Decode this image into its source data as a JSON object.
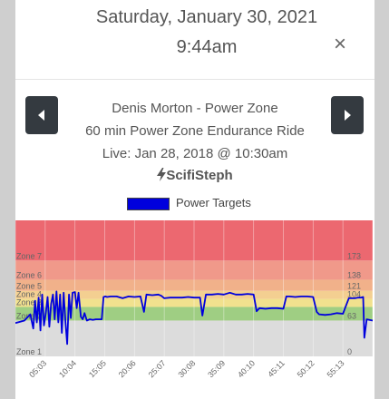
{
  "header": {
    "date": "Saturday, January 30, 2021",
    "time": "9:44am",
    "close_symbol": "×"
  },
  "ride": {
    "instructor": "Denis Morton - Power Zone",
    "title": "60 min Power Zone Endurance Ride",
    "live": "Live: Jan 28, 2018 @ 10:30am",
    "handle": "ScifiSteph"
  },
  "legend": {
    "label": "Power Targets",
    "color": "#0000dd"
  },
  "chart_data": {
    "type": "line",
    "title": "",
    "xlabel": "",
    "ylabel": "",
    "x_ticks": [
      "05:03",
      "10:04",
      "15:05",
      "20:06",
      "25:07",
      "30:08",
      "35:09",
      "40:10",
      "45:11",
      "50:12",
      "55:13"
    ],
    "zones": [
      {
        "label": "Zone 1",
        "color": "#dcdcdc"
      },
      {
        "label": "Zone 2",
        "color": "#9fce83"
      },
      {
        "label": "Zone 3",
        "color": "#f1e18e"
      },
      {
        "label": "Zone 4",
        "color": "#f3cf91"
      },
      {
        "label": "Zone 5",
        "color": "#f1b18a"
      },
      {
        "label": "Zone 6",
        "color": "#f0998a"
      },
      {
        "label": "Zone 7",
        "color": "#ec6870"
      }
    ],
    "right_ticks": [
      "0",
      "63",
      "104",
      "121",
      "138",
      "173"
    ],
    "series": [
      {
        "name": "Power Targets",
        "color": "#0000dd",
        "x": [
          0,
          1.5,
          2.5,
          3.0,
          3.3,
          3.6,
          3.9,
          4.2,
          4.5,
          4.8,
          5.1,
          5.4,
          5.7,
          6.0,
          6.3,
          6.6,
          6.9,
          7.2,
          7.5,
          7.8,
          8.1,
          8.4,
          8.7,
          9.0,
          9.3,
          9.6,
          10.0,
          10.3,
          10.6,
          11.0,
          11.3,
          11.6,
          12.0,
          12.5,
          13.0,
          13.5,
          14.0,
          14.5,
          14.8,
          15.1,
          15.4,
          16.0,
          17.0,
          18.0,
          19.0,
          20.0,
          21.0,
          21.6,
          22.0,
          23.0,
          24.0,
          24.5,
          25.0,
          26.0,
          27.0,
          28.0,
          29.0,
          30.0,
          31.0,
          31.4,
          32.0,
          33.0,
          34.0,
          35.0,
          36.0,
          37.0,
          38.0,
          39.0,
          40.0,
          40.5,
          41.0,
          42.0,
          43.0,
          44.0,
          45.0,
          45.5,
          46.0,
          47.0,
          48.0,
          49.0,
          50.0,
          50.6,
          51.0,
          52.0,
          53.0,
          54.0,
          55.0,
          56.0,
          57.0,
          57.5,
          58.0,
          58.4,
          58.6,
          59.0,
          60.0
        ],
        "values": [
          54,
          58,
          68,
          45,
          90,
          55,
          95,
          42,
          100,
          50,
          70,
          96,
          48,
          85,
          100,
          60,
          105,
          55,
          100,
          38,
          103,
          55,
          20,
          100,
          62,
          103,
          104,
          78,
          103,
          64,
          60,
          70,
          58,
          60,
          59,
          60,
          60,
          60,
          96,
          97,
          96,
          97,
          97,
          94,
          97,
          96,
          97,
          72,
          100,
          99,
          100,
          98,
          94,
          95,
          95,
          95,
          96,
          95,
          95,
          66,
          100,
          100,
          101,
          100,
          103,
          100,
          100,
          101,
          100,
          73,
          78,
          77,
          78,
          78,
          77,
          97,
          97,
          96,
          97,
          97,
          96,
          72,
          68,
          67,
          68,
          70,
          69,
          94,
          94,
          95,
          95,
          96,
          30,
          60,
          58
        ]
      }
    ]
  }
}
